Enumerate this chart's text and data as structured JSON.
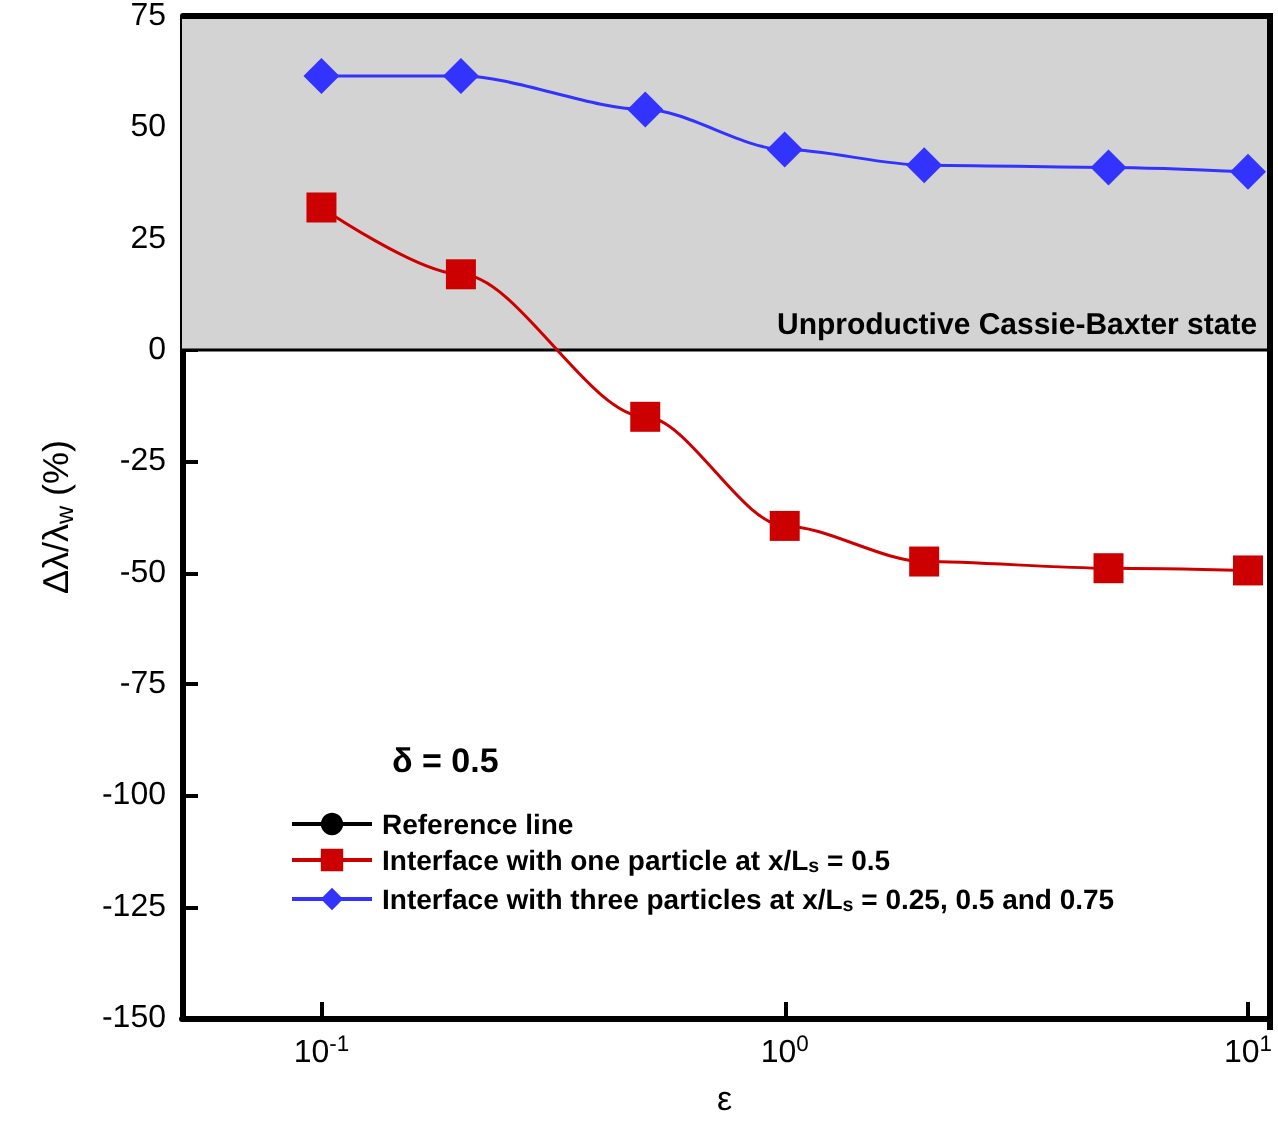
{
  "chart_data": {
    "type": "line",
    "xlabel": "ε",
    "ylabel": "Δλ/λ$_{w}$ (%)",
    "x": [
      0.1,
      0.2,
      0.5,
      1,
      2,
      5,
      10
    ],
    "series": [
      {
        "name": "Interface with one particle at x/L$_{s}$ = 0.5",
        "color": "#cc0000",
        "marker": "square",
        "values": [
          32,
          17,
          -15,
          -39.5,
          -47.5,
          -49,
          -49.5
        ]
      },
      {
        "name": "Interface with three particles at x/L$_{s}$ = 0.25, 0.5 and 0.75",
        "color": "#3333ff",
        "marker": "diamond",
        "values": [
          61.5,
          61.5,
          54,
          45,
          41.5,
          41,
          40
        ]
      }
    ],
    "log": "x",
    "xlim": [
      0.05,
      11
    ],
    "xticks": [
      {
        "value": 0.1,
        "label": "10$^{-1}$"
      },
      {
        "value": 1,
        "label": "10$^{0}$"
      },
      {
        "value": 10,
        "label": "10$^{1}$"
      }
    ],
    "ylim": [
      -150,
      75
    ],
    "yticks": [
      -150,
      -125,
      -100,
      -75,
      -50,
      -25,
      0,
      25,
      50,
      75
    ],
    "ref_lines": [
      {
        "axis": "y",
        "value": 0,
        "label": "Reference line",
        "color": "#000000"
      }
    ],
    "bands": [
      {
        "axis": "y",
        "from": 0,
        "to": 75,
        "label": "Unproductive Cassie-Baxter state",
        "color": "#d3d3d3"
      }
    ],
    "annotations": [
      "δ = 0.5"
    ],
    "legend": "bottom left",
    "grid": false,
    "line_style": "solid"
  }
}
